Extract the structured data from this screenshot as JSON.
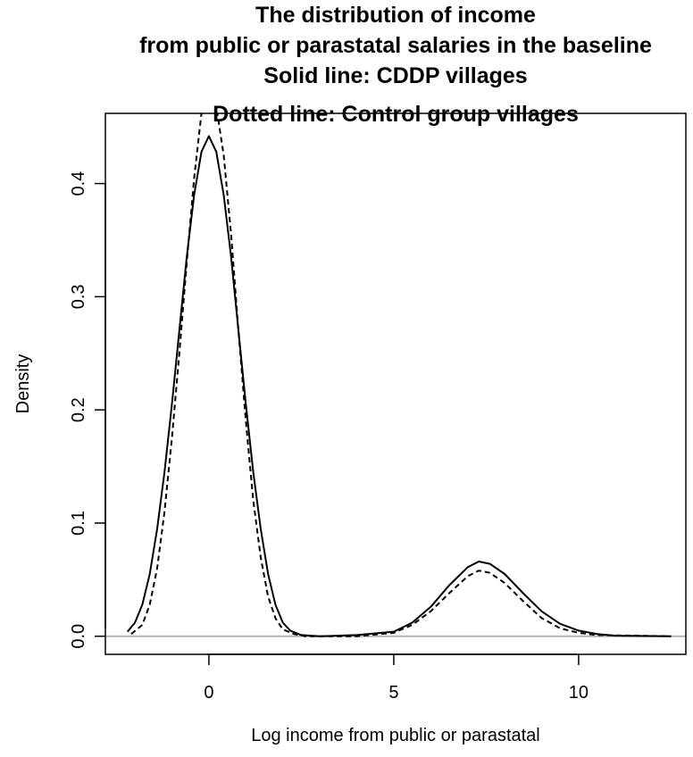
{
  "chart_data": {
    "type": "line",
    "title_lines": [
      "The distribution of income",
      "from public or parastatal salaries in the baseline",
      "Solid line: CDDP villages",
      "Dotted line: Control group villages"
    ],
    "xlabel": "Log income from public or parastatal",
    "ylabel": "Density",
    "xlim": [
      -2.8,
      12.9
    ],
    "ylim": [
      -0.016,
      0.462
    ],
    "x_ticks": [
      0,
      5,
      10
    ],
    "x_tick_labels": [
      "0",
      "5",
      "10"
    ],
    "y_ticks": [
      0.0,
      0.1,
      0.2,
      0.3,
      0.4
    ],
    "y_tick_labels": [
      "0.0",
      "0.1",
      "0.2",
      "0.3",
      "0.4"
    ],
    "grid": false,
    "legend": "none",
    "baseline_y": 0,
    "baseline_color": "#b3b3b3",
    "series": [
      {
        "style": "solid",
        "color": "#000000",
        "points": [
          [
            -2.2,
            0.004
          ],
          [
            -2.0,
            0.012
          ],
          [
            -1.8,
            0.028
          ],
          [
            -1.6,
            0.055
          ],
          [
            -1.4,
            0.095
          ],
          [
            -1.2,
            0.145
          ],
          [
            -1.0,
            0.205
          ],
          [
            -0.8,
            0.27
          ],
          [
            -0.6,
            0.335
          ],
          [
            -0.4,
            0.39
          ],
          [
            -0.2,
            0.428
          ],
          [
            0.0,
            0.442
          ],
          [
            0.2,
            0.428
          ],
          [
            0.4,
            0.39
          ],
          [
            0.6,
            0.335
          ],
          [
            0.8,
            0.27
          ],
          [
            1.0,
            0.205
          ],
          [
            1.2,
            0.145
          ],
          [
            1.4,
            0.095
          ],
          [
            1.6,
            0.055
          ],
          [
            1.8,
            0.028
          ],
          [
            2.0,
            0.012
          ],
          [
            2.2,
            0.005
          ],
          [
            2.5,
            0.001
          ],
          [
            3.0,
            0.0
          ],
          [
            4.0,
            0.001
          ],
          [
            5.0,
            0.004
          ],
          [
            5.5,
            0.012
          ],
          [
            6.0,
            0.026
          ],
          [
            6.5,
            0.045
          ],
          [
            7.0,
            0.061
          ],
          [
            7.3,
            0.066
          ],
          [
            7.6,
            0.064
          ],
          [
            8.0,
            0.055
          ],
          [
            8.5,
            0.038
          ],
          [
            9.0,
            0.022
          ],
          [
            9.5,
            0.011
          ],
          [
            10.0,
            0.005
          ],
          [
            10.5,
            0.002
          ],
          [
            11.0,
            0.0005
          ],
          [
            12.5,
            0.0
          ]
        ]
      },
      {
        "style": "dashed",
        "color": "#000000",
        "points": [
          [
            -2.1,
            0.002
          ],
          [
            -1.8,
            0.01
          ],
          [
            -1.6,
            0.028
          ],
          [
            -1.4,
            0.06
          ],
          [
            -1.2,
            0.11
          ],
          [
            -1.0,
            0.175
          ],
          [
            -0.8,
            0.25
          ],
          [
            -0.6,
            0.33
          ],
          [
            -0.4,
            0.405
          ],
          [
            -0.2,
            0.462
          ],
          [
            0.0,
            0.48
          ],
          [
            0.2,
            0.468
          ],
          [
            0.4,
            0.425
          ],
          [
            0.6,
            0.355
          ],
          [
            0.8,
            0.27
          ],
          [
            1.0,
            0.19
          ],
          [
            1.2,
            0.12
          ],
          [
            1.4,
            0.07
          ],
          [
            1.6,
            0.035
          ],
          [
            1.8,
            0.016
          ],
          [
            2.0,
            0.006
          ],
          [
            2.3,
            0.002
          ],
          [
            2.6,
            0.0
          ],
          [
            4.0,
            0.0
          ],
          [
            5.0,
            0.003
          ],
          [
            5.5,
            0.01
          ],
          [
            6.0,
            0.022
          ],
          [
            6.5,
            0.038
          ],
          [
            7.0,
            0.053
          ],
          [
            7.3,
            0.058
          ],
          [
            7.6,
            0.056
          ],
          [
            8.0,
            0.047
          ],
          [
            8.5,
            0.031
          ],
          [
            9.0,
            0.016
          ],
          [
            9.5,
            0.007
          ],
          [
            10.0,
            0.003
          ],
          [
            10.5,
            0.001
          ],
          [
            12.5,
            0.0
          ]
        ]
      }
    ]
  }
}
